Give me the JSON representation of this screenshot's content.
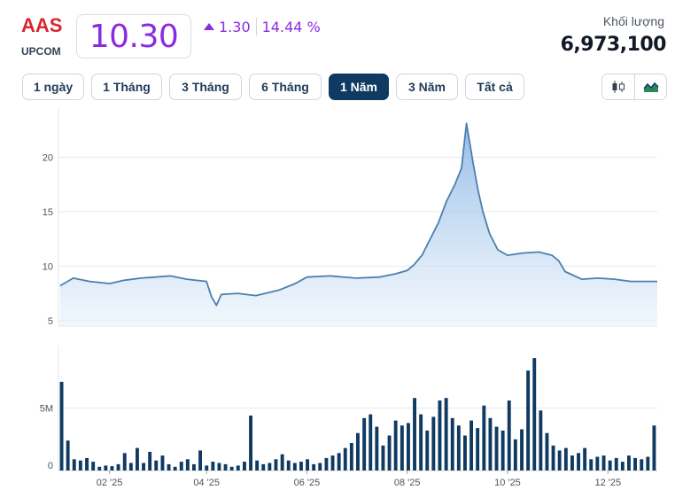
{
  "header": {
    "ticker": "AAS",
    "exchange": "UPCOM",
    "price": "10.30",
    "change": "1.30",
    "change_pct": "14.44 %",
    "volume_label": "Khối lượng",
    "volume_value": "6,973,100"
  },
  "ranges": [
    {
      "label": "1 ngày",
      "active": false
    },
    {
      "label": "1 Tháng",
      "active": false
    },
    {
      "label": "3 Tháng",
      "active": false
    },
    {
      "label": "6 Tháng",
      "active": false
    },
    {
      "label": "1 Năm",
      "active": true
    },
    {
      "label": "3 Năm",
      "active": false
    },
    {
      "label": "Tất cả",
      "active": false
    }
  ],
  "chart_toggle": {
    "candlestick_icon": "candlestick-icon",
    "area_icon": "area-chart-icon",
    "selected": "area"
  },
  "colors": {
    "line": "#4a7fae",
    "fill_top": "#8fb8e6",
    "bar": "#0f3a62",
    "accent": "#8a2be2",
    "ticker": "#d9262c"
  },
  "chart_data": [
    {
      "type": "area",
      "yticks": [
        "20",
        "15",
        "10",
        "5"
      ],
      "ylim": [
        4.5,
        24.5
      ],
      "x": [
        "2025-01-02",
        "2025-01-10",
        "2025-01-20",
        "2025-02-01",
        "2025-02-10",
        "2025-02-20",
        "2025-03-01",
        "2025-03-10",
        "2025-03-20",
        "2025-04-01",
        "2025-04-04",
        "2025-04-07",
        "2025-04-10",
        "2025-04-20",
        "2025-05-01",
        "2025-05-15",
        "2025-05-25",
        "2025-06-01",
        "2025-06-15",
        "2025-07-01",
        "2025-07-15",
        "2025-07-25",
        "2025-08-01",
        "2025-08-05",
        "2025-08-10",
        "2025-08-15",
        "2025-08-20",
        "2025-08-25",
        "2025-08-30",
        "2025-09-03",
        "2025-09-06",
        "2025-09-10",
        "2025-09-13",
        "2025-09-16",
        "2025-09-20",
        "2025-09-25",
        "2025-10-01",
        "2025-10-10",
        "2025-10-20",
        "2025-10-28",
        "2025-11-01",
        "2025-11-05",
        "2025-11-15",
        "2025-11-25",
        "2025-12-05",
        "2025-12-15",
        "2025-12-25",
        "2025-12-31"
      ],
      "y": [
        8.2,
        8.9,
        8.6,
        8.4,
        8.7,
        8.9,
        9.0,
        9.1,
        8.8,
        8.6,
        7.2,
        6.4,
        7.4,
        7.5,
        7.3,
        7.8,
        8.4,
        9.0,
        9.1,
        8.9,
        9.0,
        9.3,
        9.6,
        10.1,
        11.0,
        12.5,
        14.0,
        16.0,
        17.5,
        19.0,
        23.1,
        19.5,
        17.0,
        15.0,
        13.0,
        11.5,
        11.0,
        11.2,
        11.3,
        11.0,
        10.5,
        9.5,
        8.8,
        8.9,
        8.8,
        8.6,
        8.6,
        8.6
      ],
      "xlabels": [
        "02 '25",
        "04 '25",
        "06 '25",
        "08 '25",
        "10 '25",
        "12 '25"
      ]
    },
    {
      "type": "bar",
      "yticks": [
        "5M",
        "0"
      ],
      "ylim": [
        0,
        10000000
      ],
      "series": [
        {
          "values": [
            7100000,
            2400000,
            900000,
            800000,
            1000000,
            700000,
            300000,
            400000,
            350000,
            500000,
            1400000,
            600000,
            1800000,
            600000,
            1500000,
            800000,
            1200000,
            500000,
            300000,
            700000,
            900000,
            500000,
            1600000,
            400000,
            700000,
            600000,
            500000,
            300000,
            400000,
            700000,
            4400000,
            800000,
            500000,
            600000,
            900000,
            1300000,
            800000,
            600000,
            700000,
            900000,
            500000,
            600000,
            1000000,
            1200000,
            1400000,
            1800000,
            2200000,
            3000000,
            4200000,
            4500000,
            3500000,
            2000000,
            2800000,
            4000000,
            3600000,
            3800000,
            5800000,
            4500000,
            3200000,
            4300000,
            5600000,
            5800000,
            4200000,
            3600000,
            2800000,
            4000000,
            3400000,
            5200000,
            4200000,
            3500000,
            3200000,
            5600000,
            2500000,
            3300000,
            8000000,
            9000000,
            4800000,
            3000000,
            2000000,
            1600000,
            1800000,
            1200000,
            1400000,
            1800000,
            900000,
            1100000,
            1200000,
            800000,
            1000000,
            700000,
            1200000,
            1000000,
            900000,
            1100000,
            3600000
          ]
        }
      ]
    }
  ]
}
